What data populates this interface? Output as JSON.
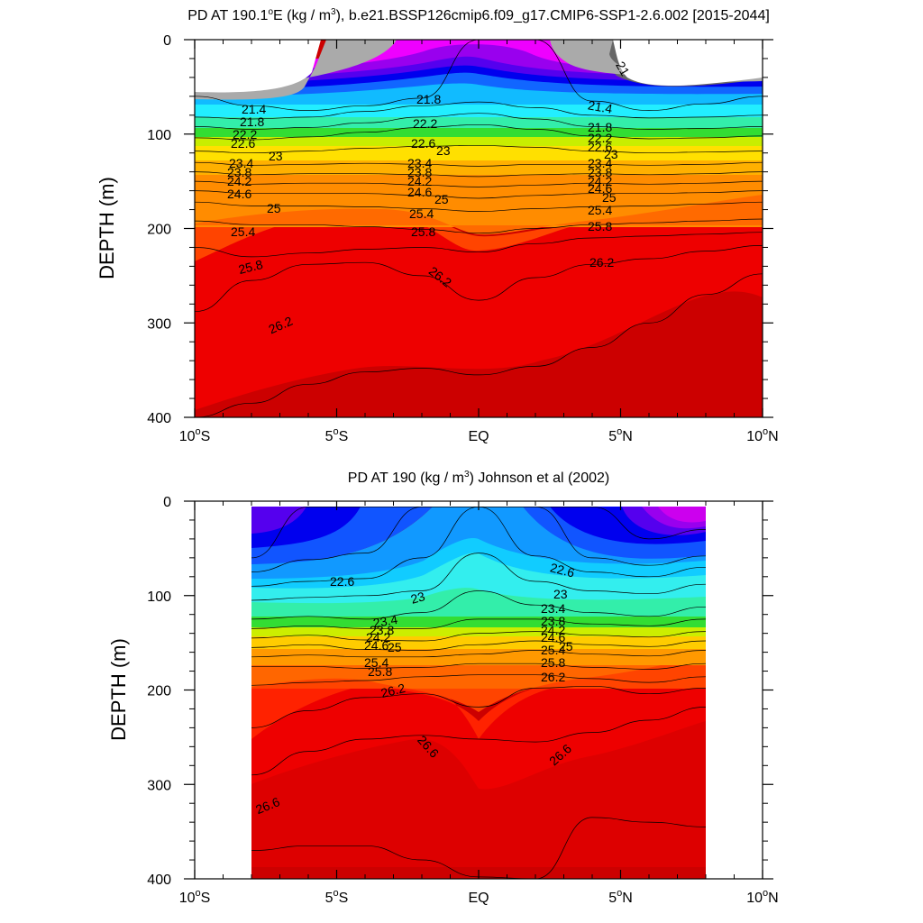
{
  "chart_data": [
    {
      "type": "contour",
      "title": "PD AT 190.1°E (kg / m³), b.e21.BSSP126cmip6.f09_g17.CMIP6-SSP1-2.6.002 [2015-2044]",
      "title_parts": {
        "pre": "PD AT 190.1",
        "deg": "o",
        "post1": "E (kg / m",
        "sup": "3",
        "post2": "), b.e21.BSSP126cmip6.f09_g17.CMIP6-SSP1-2.6.002 [2015-2044]"
      },
      "ylabel": "DEPTH (m)",
      "xlabel": "",
      "xlim": [
        -10,
        10
      ],
      "ylim": [
        0,
        400
      ],
      "y_reversed": true,
      "xticks": [
        {
          "v": -10,
          "num": "10",
          "deg": "o",
          "suf": "S"
        },
        {
          "v": -5,
          "num": "5",
          "deg": "o",
          "suf": "S"
        },
        {
          "v": 0,
          "num": "EQ",
          "deg": "",
          "suf": ""
        },
        {
          "v": 5,
          "num": "5",
          "deg": "o",
          "suf": "N"
        },
        {
          "v": 10,
          "num": "10",
          "deg": "o",
          "suf": "N"
        }
      ],
      "yticks": [
        "0",
        "100",
        "200",
        "300",
        "400"
      ],
      "data_xrange": [
        -10,
        10
      ],
      "levels": [
        21.0,
        21.2,
        21.4,
        21.6,
        21.8,
        22.0,
        22.2,
        22.4,
        22.6,
        22.8,
        23.0,
        23.2,
        23.4,
        23.6,
        23.8,
        24.0,
        24.2,
        24.4,
        24.6,
        24.8,
        25.0,
        25.2,
        25.4,
        25.6,
        25.8,
        26.0,
        26.2,
        26.4,
        26.6
      ],
      "contour_depths": {
        "x": [
          -10,
          -8,
          -6,
          -4,
          -2,
          0,
          2,
          4,
          6,
          8,
          10
        ],
        "isopycnals": [
          {
            "level": 21.4,
            "depth": [
              60,
              70,
              75,
              70,
              62,
              0,
              0,
              65,
              75,
              68,
              60
            ]
          },
          {
            "level": 21.8,
            "depth": [
              82,
              84,
              82,
              76,
              70,
              66,
              72,
              80,
              83,
              82,
              80
            ]
          },
          {
            "level": 22.2,
            "depth": [
              92,
              95,
              93,
              88,
              82,
              78,
              84,
              92,
              95,
              94,
              92
            ]
          },
          {
            "level": 22.6,
            "depth": [
              104,
              106,
              103,
              98,
              93,
              90,
              95,
              102,
              105,
              104,
              102
            ]
          },
          {
            "level": 23.0,
            "depth": [
              118,
              120,
              118,
              115,
              113,
              112,
              114,
              118,
              120,
              119,
              118
            ]
          },
          {
            "level": 23.4,
            "depth": [
              130,
              133,
              132,
              131,
              132,
              134,
              132,
              132,
              133,
              132,
              130
            ]
          },
          {
            "level": 23.8,
            "depth": [
              140,
              143,
              142,
              142,
              143,
              145,
              143,
              142,
              143,
              142,
              140
            ]
          },
          {
            "level": 24.2,
            "depth": [
              150,
              153,
              152,
              152,
              154,
              156,
              154,
              152,
              153,
              152,
              150
            ]
          },
          {
            "level": 24.6,
            "depth": [
              160,
              163,
              163,
              163,
              165,
              168,
              165,
              163,
              163,
              162,
              160
            ]
          },
          {
            "level": 25.0,
            "depth": [
              172,
              176,
              176,
              177,
              179,
              182,
              179,
              177,
              176,
              174,
              172
            ]
          },
          {
            "level": 25.4,
            "depth": [
              192,
              196,
              196,
              198,
              201,
              205,
              200,
              196,
              194,
              192,
              190
            ]
          },
          {
            "level": 25.8,
            "depth": [
              220,
              230,
              226,
              222,
              220,
              225,
              216,
              210,
              208,
              206,
              204
            ]
          },
          {
            "level": 26.2,
            "depth": [
              288,
              255,
              238,
              236,
              250,
              276,
              252,
              238,
              232,
              224,
              218
            ]
          },
          {
            "level": 26.6,
            "depth": [
              400,
              385,
              365,
              352,
              348,
              355,
              346,
              326,
              300,
              270,
              248
            ]
          }
        ]
      },
      "label_texts": [
        "21",
        "21.4",
        "21.8",
        "22.2",
        "22.6",
        "23",
        "23.4",
        "23.8",
        "24.2",
        "24.6",
        "25",
        "25.4",
        "25.8",
        "26.2"
      ]
    },
    {
      "type": "contour",
      "title": "PD AT 190 (kg / m³) Johnson et al (2002)",
      "title_parts": {
        "pre": "PD AT 190 (kg / m",
        "sup": "3",
        "post2": ") Johnson et al (2002)"
      },
      "ylabel": "DEPTH (m)",
      "xlabel": "",
      "xlim": [
        -10,
        10
      ],
      "ylim": [
        0,
        400
      ],
      "y_reversed": true,
      "xticks": [
        {
          "v": -10,
          "num": "10",
          "deg": "o",
          "suf": "S"
        },
        {
          "v": -5,
          "num": "5",
          "deg": "o",
          "suf": "S"
        },
        {
          "v": 0,
          "num": "EQ",
          "deg": "",
          "suf": ""
        },
        {
          "v": 5,
          "num": "5",
          "deg": "o",
          "suf": "N"
        },
        {
          "v": 10,
          "num": "10",
          "deg": "o",
          "suf": "N"
        }
      ],
      "yticks": [
        "0",
        "100",
        "200",
        "300",
        "400"
      ],
      "data_xrange": [
        -8,
        8
      ],
      "data_ytop": 6,
      "contour_depths": {
        "x": [
          -8,
          -6,
          -4,
          -2,
          0,
          2,
          4,
          6,
          8
        ],
        "isopycnals": [
          {
            "level": 21.8,
            "depth": [
              60,
              6,
              6,
              6,
              6,
              6,
              6,
              40,
              30
            ]
          },
          {
            "level": 22.2,
            "depth": [
              75,
              62,
              55,
              6,
              6,
              6,
              60,
              68,
              58
            ]
          },
          {
            "level": 22.6,
            "depth": [
              90,
              85,
              82,
              60,
              6,
              58,
              75,
              80,
              70
            ]
          },
          {
            "level": 23.0,
            "depth": [
              105,
              102,
              100,
              95,
              55,
              85,
              95,
              98,
              88
            ]
          },
          {
            "level": 23.4,
            "depth": [
              125,
              122,
              125,
              118,
              95,
              110,
              118,
              122,
              112
            ]
          },
          {
            "level": 23.8,
            "depth": [
              135,
              132,
              135,
              135,
              125,
              125,
              130,
              132,
              125
            ]
          },
          {
            "level": 24.2,
            "depth": [
              145,
              142,
              147,
              148,
              140,
              138,
              142,
              144,
              138
            ]
          },
          {
            "level": 24.6,
            "depth": [
              155,
              152,
              157,
              158,
              152,
              148,
              152,
              154,
              148
            ]
          },
          {
            "level": 25.0,
            "depth": [
              165,
              163,
              165,
              165,
              162,
              158,
              162,
              164,
              158
            ]
          },
          {
            "level": 25.4,
            "depth": [
              175,
              175,
              177,
              176,
              172,
              172,
              176,
              178,
              172
            ]
          },
          {
            "level": 25.8,
            "depth": [
              195,
              192,
              190,
              186,
              184,
              184,
              188,
              192,
              186
            ]
          },
          {
            "level": 26.2,
            "depth": [
              240,
              222,
              208,
              204,
              218,
              198,
              196,
              204,
              198
            ]
          },
          {
            "level": 26.6,
            "depth": [
              290,
              265,
              252,
              248,
              252,
              255,
              245,
              232,
              218
            ]
          },
          {
            "level": 27.0,
            "depth": [
              370,
              365,
              365,
              380,
              398,
              400,
              335,
              340,
              345
            ]
          }
        ]
      },
      "label_texts": [
        "22.6",
        "23",
        "23.4",
        "23.8",
        "24.2",
        "24.6",
        "25",
        "25.4",
        "25.8",
        "26.2",
        "26.6"
      ]
    }
  ]
}
